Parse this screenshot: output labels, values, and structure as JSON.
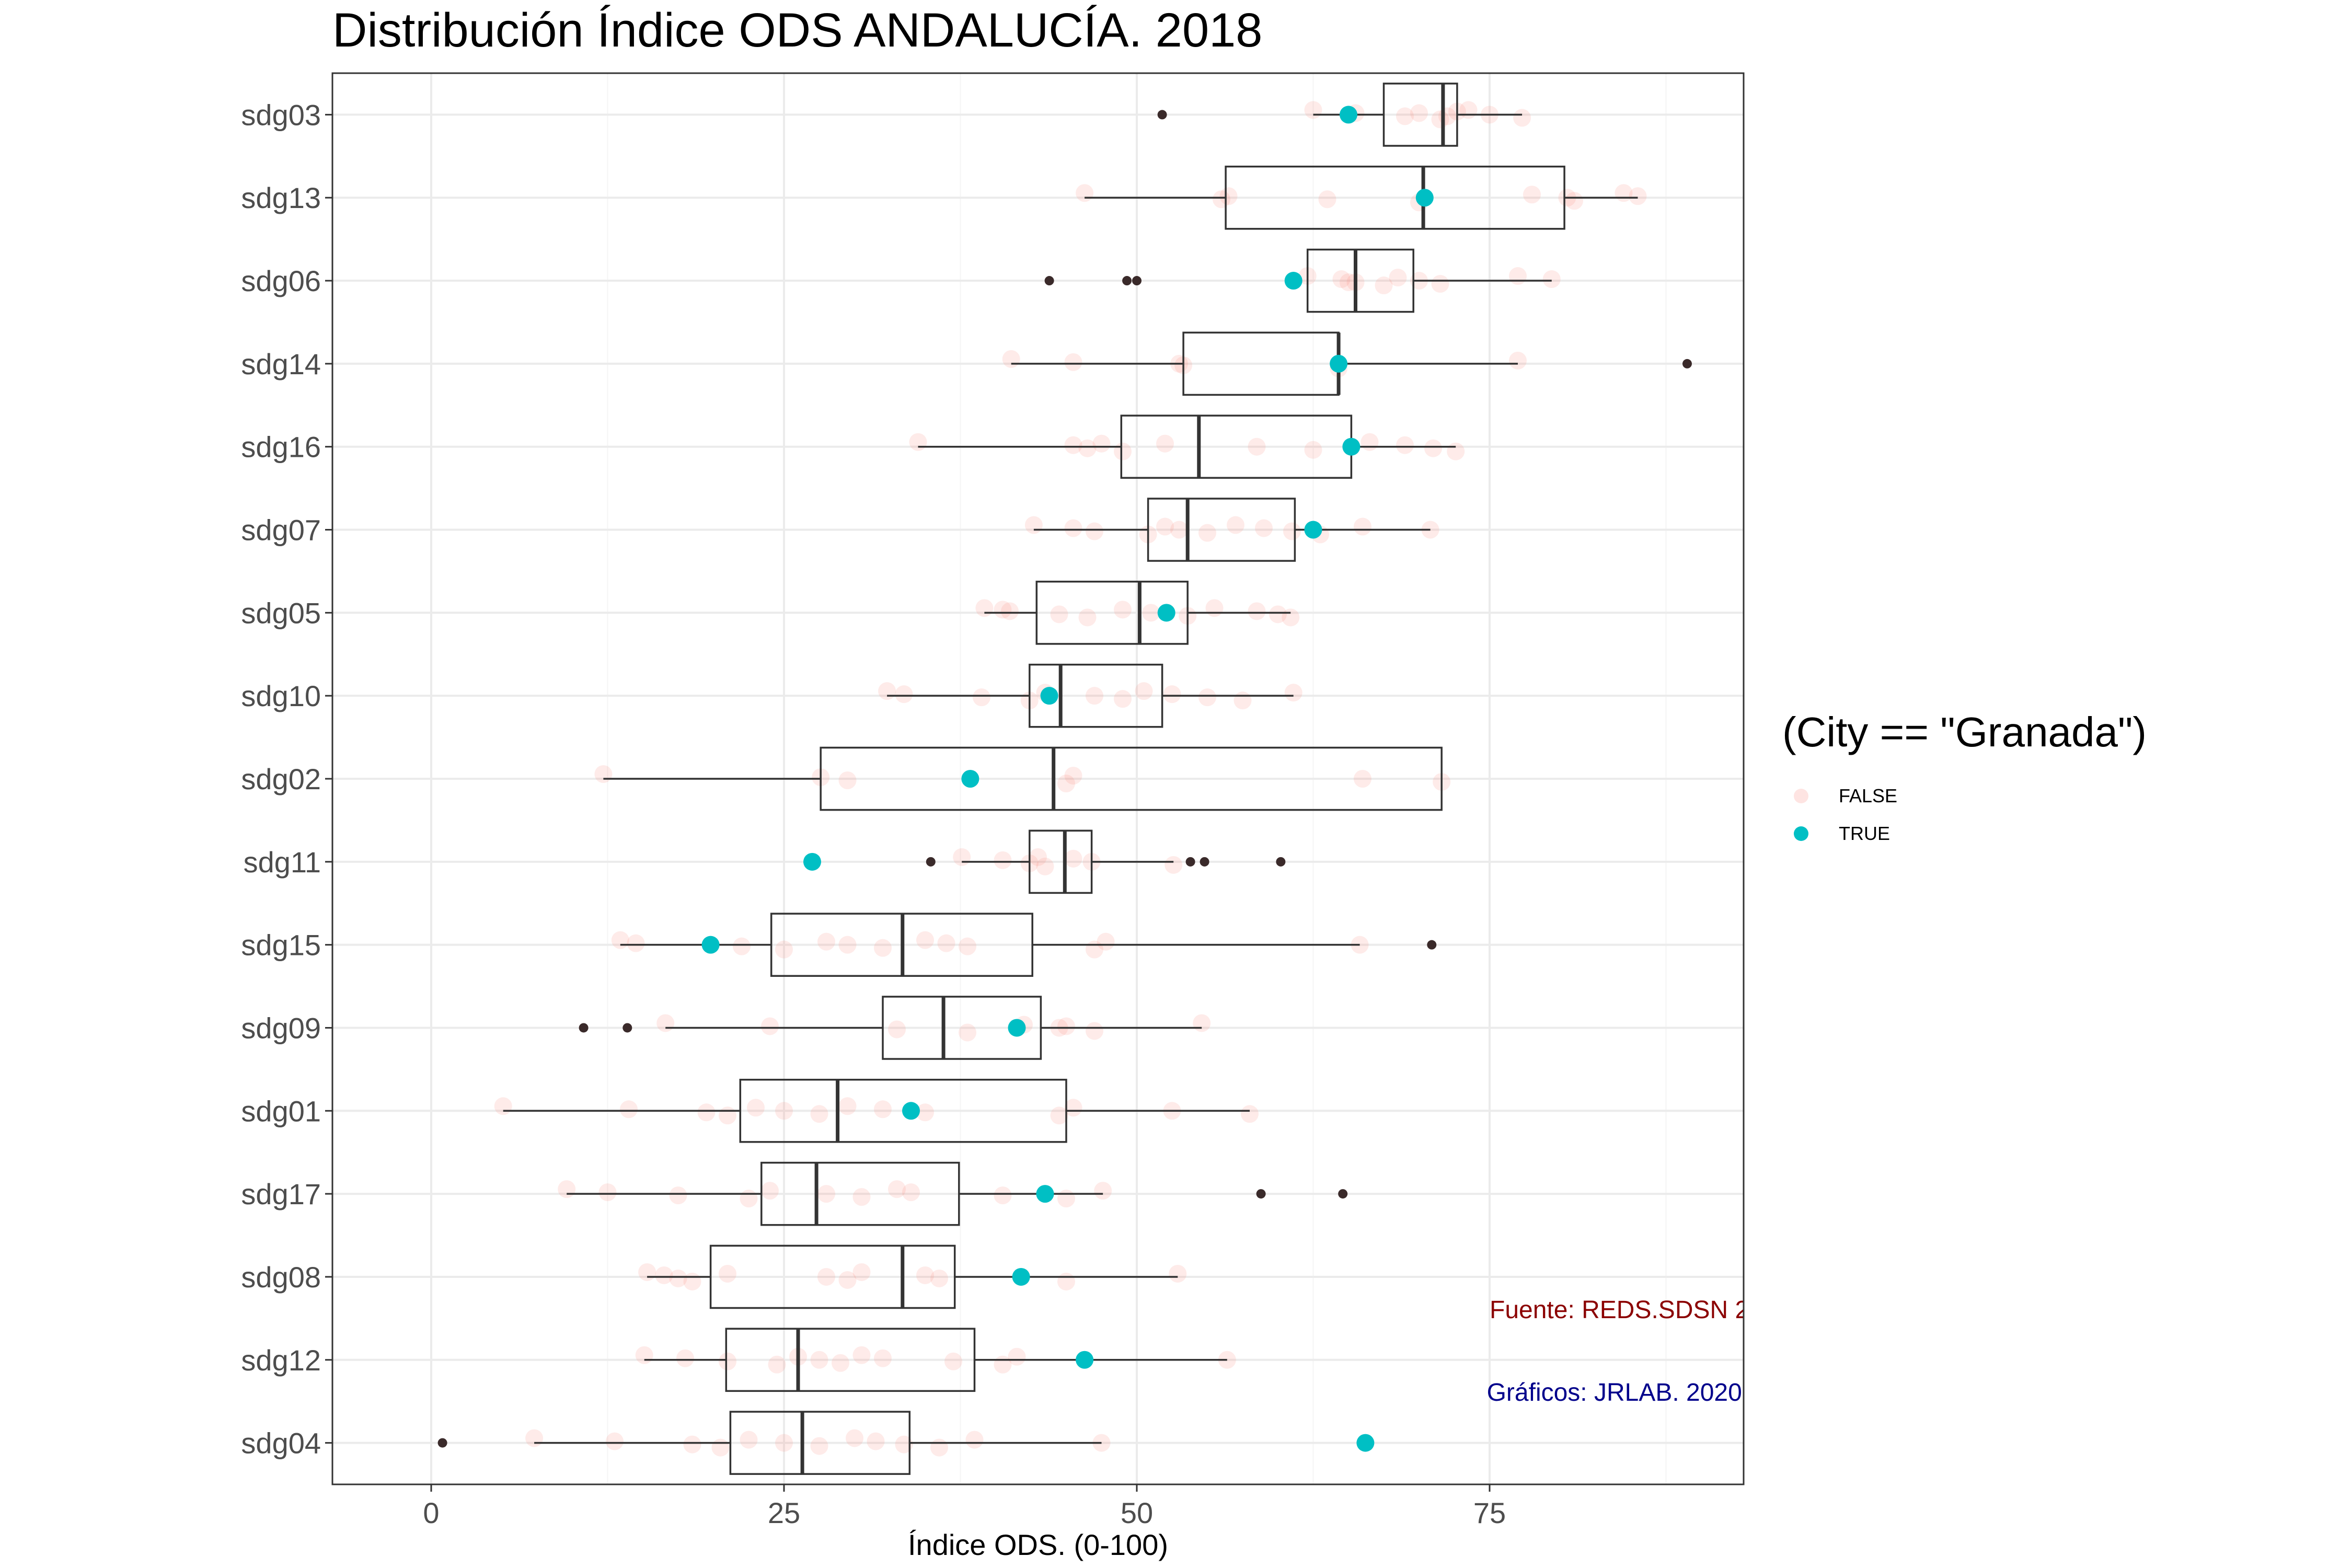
{
  "chart_data": {
    "type": "boxplot",
    "title": "Distribución Índice ODS ANDALUCÍA. 2018",
    "xlabel": "Índice ODS. (0-100)",
    "ylabel": "",
    "xlim": [
      -7,
      93
    ],
    "x_ticks": [
      0,
      25,
      50,
      75
    ],
    "grid": true,
    "legend": {
      "title": "(City == \"Granada\")",
      "position": "right",
      "entries": [
        {
          "label": "FALSE",
          "color": "#f8766d"
        },
        {
          "label": "TRUE",
          "color": "#00bfc4"
        }
      ]
    },
    "categories": [
      "sdg03",
      "sdg13",
      "sdg06",
      "sdg14",
      "sdg16",
      "sdg07",
      "sdg05",
      "sdg10",
      "sdg02",
      "sdg11",
      "sdg15",
      "sdg09",
      "sdg01",
      "sdg17",
      "sdg08",
      "sdg12",
      "sdg04"
    ],
    "boxes": [
      {
        "category": "sdg03",
        "whisker_low": 62.5,
        "q1": 67.5,
        "median": 71.7,
        "q3": 72.7,
        "whisker_high": 77.3,
        "outliers": [
          51.8
        ],
        "granada": 65.0
      },
      {
        "category": "sdg13",
        "whisker_low": 46.3,
        "q1": 56.3,
        "median": 70.3,
        "q3": 80.3,
        "whisker_high": 85.5,
        "outliers": [],
        "granada": 70.4
      },
      {
        "category": "sdg06",
        "whisker_low": 62.1,
        "q1": 62.1,
        "median": 65.5,
        "q3": 69.6,
        "whisker_high": 79.4,
        "outliers": [
          43.8,
          49.3,
          50.0
        ],
        "granada": 61.1
      },
      {
        "category": "sdg14",
        "whisker_low": 41.1,
        "q1": 53.3,
        "median": 64.3,
        "q3": 64.3,
        "whisker_high": 77.0,
        "outliers": [
          89.0
        ],
        "granada": 64.3
      },
      {
        "category": "sdg16",
        "whisker_low": 34.5,
        "q1": 48.9,
        "median": 54.4,
        "q3": 65.2,
        "whisker_high": 72.6,
        "outliers": [],
        "granada": 65.2
      },
      {
        "category": "sdg07",
        "whisker_low": 42.7,
        "q1": 50.8,
        "median": 53.6,
        "q3": 61.2,
        "whisker_high": 70.8,
        "outliers": [],
        "granada": 62.5
      },
      {
        "category": "sdg05",
        "whisker_low": 39.2,
        "q1": 42.9,
        "median": 50.2,
        "q3": 53.6,
        "whisker_high": 60.9,
        "outliers": [],
        "granada": 52.1
      },
      {
        "category": "sdg10",
        "whisker_low": 32.3,
        "q1": 42.4,
        "median": 44.6,
        "q3": 51.8,
        "whisker_high": 61.1,
        "outliers": [],
        "granada": 43.8
      },
      {
        "category": "sdg02",
        "whisker_low": 12.2,
        "q1": 27.6,
        "median": 44.1,
        "q3": 71.6,
        "whisker_high": 71.6,
        "outliers": [],
        "granada": 38.2
      },
      {
        "category": "sdg11",
        "whisker_low": 37.6,
        "q1": 42.4,
        "median": 44.9,
        "q3": 46.8,
        "whisker_high": 52.6,
        "outliers": [
          35.4,
          53.8,
          54.8,
          60.2
        ],
        "granada": 27.0
      },
      {
        "category": "sdg15",
        "whisker_low": 13.4,
        "q1": 24.1,
        "median": 33.4,
        "q3": 42.6,
        "whisker_high": 65.8,
        "outliers": [
          70.9
        ],
        "granada": 19.8
      },
      {
        "category": "sdg09",
        "whisker_low": 16.6,
        "q1": 32.0,
        "median": 36.3,
        "q3": 43.2,
        "whisker_high": 54.6,
        "outliers": [
          10.8,
          13.9
        ],
        "granada": 41.5
      },
      {
        "category": "sdg01",
        "whisker_low": 5.1,
        "q1": 21.9,
        "median": 28.8,
        "q3": 45.0,
        "whisker_high": 58.0,
        "outliers": [],
        "granada": 34.0
      },
      {
        "category": "sdg17",
        "whisker_low": 9.6,
        "q1": 23.4,
        "median": 27.3,
        "q3": 37.4,
        "whisker_high": 47.6,
        "outliers": [
          58.8,
          64.6
        ],
        "granada": 43.5
      },
      {
        "category": "sdg08",
        "whisker_low": 15.3,
        "q1": 19.8,
        "median": 33.4,
        "q3": 37.1,
        "whisker_high": 52.9,
        "outliers": [],
        "granada": 41.8
      },
      {
        "category": "sdg12",
        "whisker_low": 15.1,
        "q1": 20.9,
        "median": 26.0,
        "q3": 38.5,
        "whisker_high": 56.4,
        "outliers": [],
        "granada": 46.3
      },
      {
        "category": "sdg04",
        "whisker_low": 7.3,
        "q1": 21.2,
        "median": 26.3,
        "q3": 33.9,
        "whisker_high": 47.5,
        "outliers": [
          0.8
        ],
        "granada": 66.2
      }
    ],
    "non_granada_points": {
      "sdg03": [
        62.5,
        65.5,
        69.0,
        71.5,
        72.7,
        75.0,
        77.3,
        73.5,
        70.0,
        72.0
      ],
      "sdg13": [
        46.3,
        56.5,
        63.5,
        70.0,
        78.0,
        80.5,
        81.0,
        84.5,
        85.5,
        56.0
      ],
      "sdg06": [
        62.1,
        64.5,
        65.5,
        67.5,
        68.5,
        70.0,
        71.5,
        77.0,
        79.4,
        65.0
      ],
      "sdg14": [
        41.1,
        45.5,
        53.3,
        64.3,
        77.0,
        53.0
      ],
      "sdg16": [
        34.5,
        45.5,
        46.5,
        49.0,
        52.0,
        58.5,
        62.5,
        66.5,
        69.0,
        71.0,
        72.6,
        47.5
      ],
      "sdg07": [
        42.7,
        45.5,
        47.0,
        50.8,
        52.0,
        53.0,
        55.0,
        57.0,
        59.0,
        61.0,
        63.0,
        66.0,
        70.8
      ],
      "sdg05": [
        39.2,
        41.0,
        44.5,
        46.5,
        49.0,
        51.0,
        53.6,
        55.5,
        58.5,
        60.0,
        60.9,
        40.5
      ],
      "sdg10": [
        32.3,
        33.5,
        39.0,
        42.4,
        43.5,
        47.0,
        49.0,
        50.5,
        52.5,
        55.0,
        57.5,
        61.1
      ],
      "sdg02": [
        12.2,
        27.6,
        29.5,
        45.0,
        45.5,
        66.0,
        71.6
      ],
      "sdg11": [
        37.6,
        40.5,
        42.4,
        43.5,
        45.5,
        46.8,
        52.6,
        43.0
      ],
      "sdg15": [
        13.4,
        14.5,
        22.0,
        25.0,
        28.0,
        29.5,
        32.0,
        35.0,
        36.5,
        38.0,
        47.0,
        47.8,
        65.8
      ],
      "sdg09": [
        16.6,
        24.0,
        33.0,
        38.0,
        42.0,
        44.5,
        47.0,
        54.6,
        45.0
      ],
      "sdg01": [
        5.1,
        14.0,
        19.5,
        21.0,
        23.0,
        25.0,
        27.5,
        29.5,
        32.0,
        35.0,
        44.5,
        45.5,
        52.5,
        58.0
      ],
      "sdg17": [
        9.6,
        12.5,
        17.5,
        22.5,
        24.0,
        28.0,
        30.5,
        33.0,
        34.0,
        40.5,
        45.0,
        47.6
      ],
      "sdg08": [
        15.3,
        16.5,
        17.5,
        18.5,
        21.0,
        28.0,
        29.5,
        30.5,
        35.0,
        36.0,
        45.0,
        52.9
      ],
      "sdg12": [
        15.1,
        18.0,
        21.0,
        24.5,
        26.0,
        27.5,
        29.0,
        30.5,
        32.0,
        37.0,
        40.5,
        41.5,
        56.4
      ],
      "sdg04": [
        7.3,
        13.0,
        18.5,
        20.5,
        22.5,
        25.0,
        27.5,
        30.0,
        31.5,
        33.5,
        36.0,
        38.5,
        47.5
      ]
    },
    "annotations": [
      {
        "text": "Fuente: REDS.SDSN 2",
        "color": "#8b0000"
      },
      {
        "text": "Gráficos: JRLAB. 2020",
        "color": "#00008b"
      }
    ],
    "colors": {
      "false_point": "#f8766d",
      "true_point": "#00bfc4",
      "outlier": "#3a2a2a",
      "box_line": "#333333",
      "grid": "#ebebeb",
      "panel_border": "#333333",
      "axis_text": "#4d4d4d"
    }
  }
}
